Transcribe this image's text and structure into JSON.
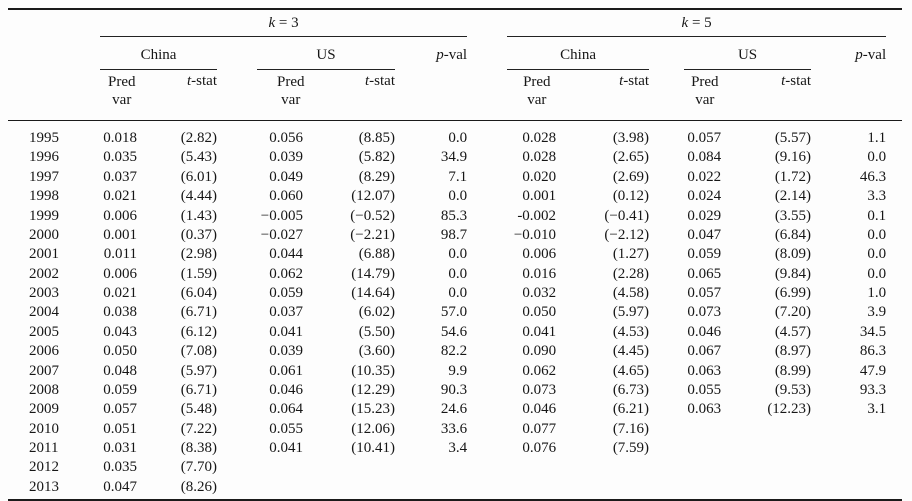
{
  "colors": {
    "background": "#fdfdfd",
    "rule": "#1b1b1b",
    "text": "#161616"
  },
  "table": {
    "k3": {
      "sym": "k",
      "rest": " = 3",
      "china": "China",
      "us": "US",
      "pval_sym": "p",
      "pval_rest": "-val"
    },
    "k5": {
      "sym": "k",
      "rest": " = 5",
      "china": "China",
      "us": "US",
      "pval_sym": "p",
      "pval_rest": "-val"
    },
    "sub": {
      "pred_line1": "Pred",
      "pred_line2": "var",
      "t_sym": "t",
      "t_rest": "-stat"
    },
    "rows": [
      [
        "1995",
        "0.018",
        "(2.82)",
        "0.056",
        "(8.85)",
        "0.0",
        "0.028",
        "(3.98)",
        "0.057",
        "(5.57)",
        "1.1"
      ],
      [
        "1996",
        "0.035",
        "(5.43)",
        "0.039",
        "(5.82)",
        "34.9",
        "0.028",
        "(2.65)",
        "0.084",
        "(9.16)",
        "0.0"
      ],
      [
        "1997",
        "0.037",
        "(6.01)",
        "0.049",
        "(8.29)",
        "7.1",
        "0.020",
        "(2.69)",
        "0.022",
        "(1.72)",
        "46.3"
      ],
      [
        "1998",
        "0.021",
        "(4.44)",
        "0.060",
        "(12.07)",
        "0.0",
        "0.001",
        "(0.12)",
        "0.024",
        "(2.14)",
        "3.3"
      ],
      [
        "1999",
        "0.006",
        "(1.43)",
        "−0.005",
        "(−0.52)",
        "85.3",
        "-0.002",
        "(−0.41)",
        "0.029",
        "(3.55)",
        "0.1"
      ],
      [
        "2000",
        "0.001",
        "(0.37)",
        "−0.027",
        "(−2.21)",
        "98.7",
        "−0.010",
        "(−2.12)",
        "0.047",
        "(6.84)",
        "0.0"
      ],
      [
        "2001",
        "0.011",
        "(2.98)",
        "0.044",
        "(6.88)",
        "0.0",
        "0.006",
        "(1.27)",
        "0.059",
        "(8.09)",
        "0.0"
      ],
      [
        "2002",
        "0.006",
        "(1.59)",
        "0.062",
        "(14.79)",
        "0.0",
        "0.016",
        "(2.28)",
        "0.065",
        "(9.84)",
        "0.0"
      ],
      [
        "2003",
        "0.021",
        "(6.04)",
        "0.059",
        "(14.64)",
        "0.0",
        "0.032",
        "(4.58)",
        "0.057",
        "(6.99)",
        "1.0"
      ],
      [
        "2004",
        "0.038",
        "(6.71)",
        "0.037",
        "(6.02)",
        "57.0",
        "0.050",
        "(5.97)",
        "0.073",
        "(7.20)",
        "3.9"
      ],
      [
        "2005",
        "0.043",
        "(6.12)",
        "0.041",
        "(5.50)",
        "54.6",
        "0.041",
        "(4.53)",
        "0.046",
        "(4.57)",
        "34.5"
      ],
      [
        "2006",
        "0.050",
        "(7.08)",
        "0.039",
        "(3.60)",
        "82.2",
        "0.090",
        "(4.45)",
        "0.067",
        "(8.97)",
        "86.3"
      ],
      [
        "2007",
        "0.048",
        "(5.97)",
        "0.061",
        "(10.35)",
        "9.9",
        "0.062",
        "(4.65)",
        "0.063",
        "(8.99)",
        "47.9"
      ],
      [
        "2008",
        "0.059",
        "(6.71)",
        "0.046",
        "(12.29)",
        "90.3",
        "0.073",
        "(6.73)",
        "0.055",
        "(9.53)",
        "93.3"
      ],
      [
        "2009",
        "0.057",
        "(5.48)",
        "0.064",
        "(15.23)",
        "24.6",
        "0.046",
        "(6.21)",
        "0.063",
        "(12.23)",
        "3.1"
      ],
      [
        "2010",
        "0.051",
        "(7.22)",
        "0.055",
        "(12.06)",
        "33.6",
        "0.077",
        "(7.16)",
        "",
        "",
        ""
      ],
      [
        "2011",
        "0.031",
        "(8.38)",
        "0.041",
        "(10.41)",
        "3.4",
        "0.076",
        "(7.59)",
        "",
        "",
        ""
      ],
      [
        "2012",
        "0.035",
        "(7.70)",
        "",
        "",
        "",
        "",
        "",
        "",
        "",
        ""
      ],
      [
        "2013",
        "0.047",
        "(8.26)",
        "",
        "",
        "",
        "",
        "",
        "",
        "",
        ""
      ]
    ]
  }
}
